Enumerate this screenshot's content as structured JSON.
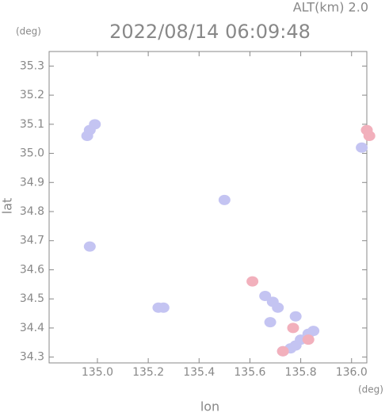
{
  "chart_data": {
    "type": "scatter",
    "title": "2022/08/14 06:09:48",
    "subtitle": "ALT(km) 2.0",
    "x_label": "lon",
    "y_label": "lat",
    "x_unit": "(deg)",
    "y_unit": "(deg)",
    "xlim": [
      134.81,
      136.06
    ],
    "ylim": [
      34.28,
      35.35
    ],
    "xticks": [
      {
        "value": 135,
        "label": "135.0"
      },
      135.2,
      135.4,
      135.6,
      135.8,
      {
        "value": 136,
        "label": "136.0"
      }
    ],
    "yticks": [
      34.3,
      34.4,
      34.5,
      34.6,
      34.7,
      34.8,
      34.9,
      {
        "value": 35,
        "label": "35.0"
      },
      35.1,
      35.2,
      35.3
    ],
    "series": [
      {
        "color": "#c4c4f2",
        "x": [
          134.97,
          134.96,
          134.99,
          134.97,
          135.26,
          135.24,
          135.69,
          135.66,
          135.71,
          135.68,
          135.78,
          135.83,
          135.8,
          135.85,
          135.76,
          135.73,
          135.5,
          136.04,
          135.78
        ],
        "y": [
          35.08,
          35.06,
          35.1,
          34.68,
          34.47,
          34.47,
          34.49,
          34.51,
          34.47,
          34.42,
          34.44,
          34.38,
          34.36,
          34.39,
          34.33,
          34.32,
          34.84,
          35.02,
          34.34
        ]
      },
      {
        "color": "#f2b0bc",
        "x": [
          136.06,
          136.07,
          135.61,
          135.77,
          135.73,
          135.83
        ],
        "y": [
          35.08,
          35.06,
          34.56,
          34.4,
          34.32,
          34.36
        ]
      }
    ]
  }
}
